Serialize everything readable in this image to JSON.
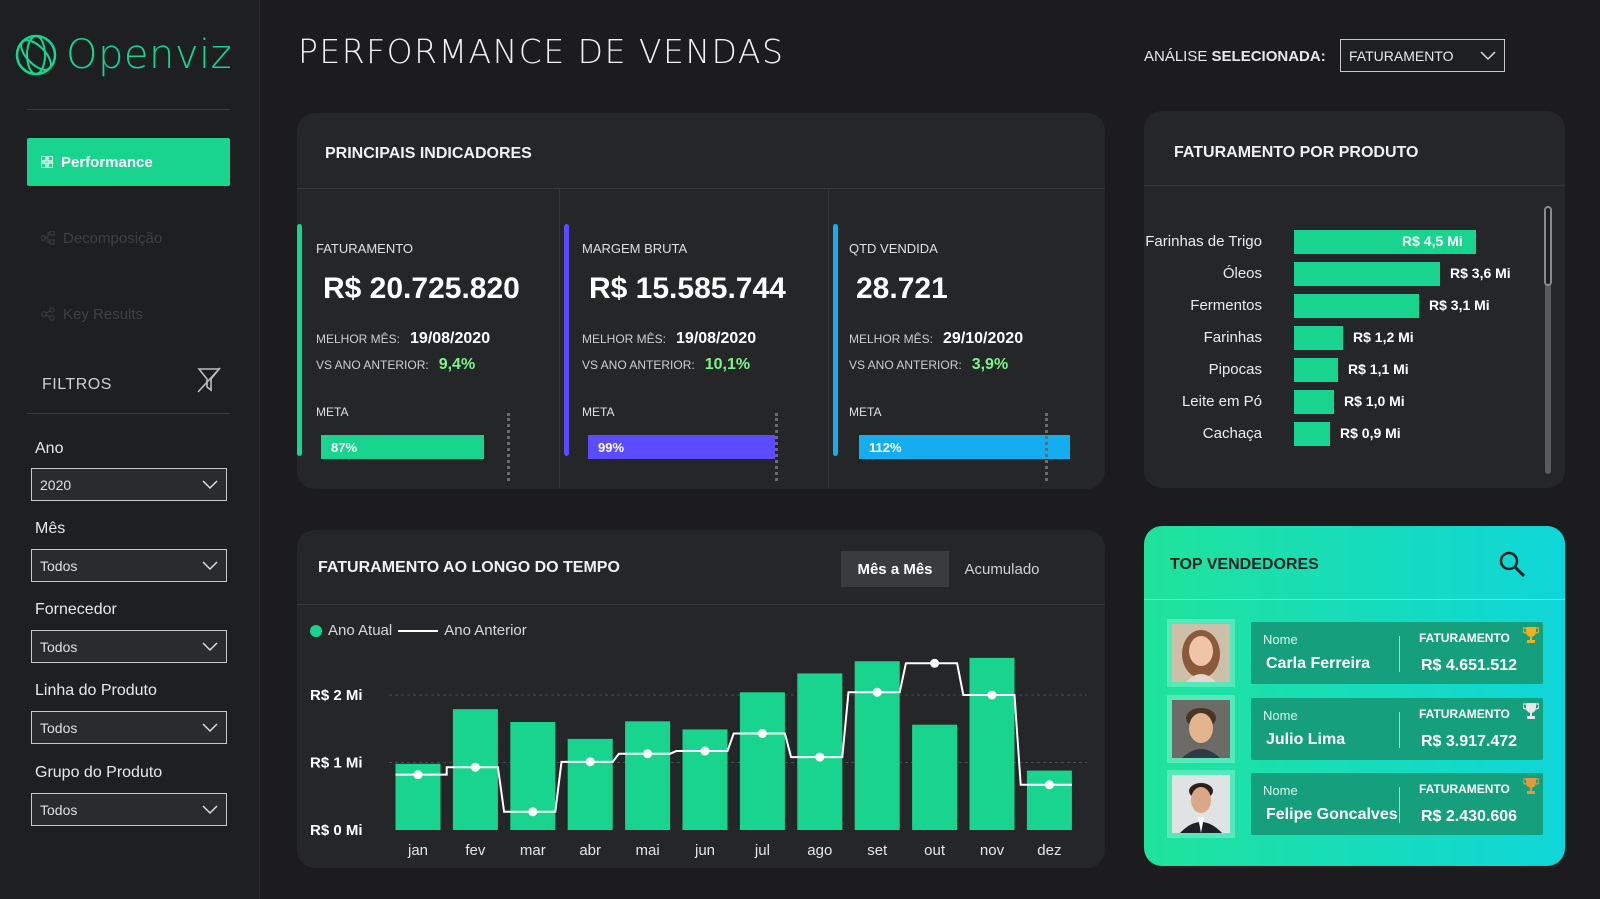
{
  "brand": {
    "name": "Openviz",
    "color": "#19d48f"
  },
  "sidebar": {
    "nav": [
      {
        "label": "Performance",
        "icon": "grid-icon",
        "active": true
      },
      {
        "label": "Decomposição",
        "icon": "tree-icon",
        "active": false
      },
      {
        "label": "Key Results",
        "icon": "nodes-icon",
        "active": false
      }
    ],
    "filters_title": "FILTROS",
    "filters": [
      {
        "label": "Ano",
        "value": "2020"
      },
      {
        "label": "Mês",
        "value": "Todos"
      },
      {
        "label": "Fornecedor",
        "value": "Todos"
      },
      {
        "label": "Linha do Produto",
        "value": "Todos"
      },
      {
        "label": "Grupo do Produto",
        "value": "Todos"
      }
    ]
  },
  "header": {
    "title": "PERFORMANCE DE VENDAS",
    "analysis_label_1": "ANÁLISE",
    "analysis_label_2": "SELECIONADA:",
    "analysis_value": "FATURAMENTO"
  },
  "kpis": {
    "title": "PRINCIPAIS INDICADORES",
    "best_month_label": "MELHOR MÊS:",
    "vs_label": "VS ANO ANTERIOR:",
    "meta_label": "META",
    "items": [
      {
        "label": "FATURAMENTO",
        "value": "R$ 20.725.820",
        "best_month": "19/08/2020",
        "vs_prev": "9,4%",
        "meta_pct": "87%",
        "meta_fraction": 0.87,
        "color": "#19d48f"
      },
      {
        "label": "MARGEM BRUTA",
        "value": "R$ 15.585.744",
        "best_month": "19/08/2020",
        "vs_prev": "10,1%",
        "meta_pct": "99%",
        "meta_fraction": 0.99,
        "color": "#5b4dff"
      },
      {
        "label": "QTD VENDIDA",
        "value": "28.721",
        "best_month": "29/10/2020",
        "vs_prev": "3,9%",
        "meta_pct": "112%",
        "meta_fraction": 1.12,
        "color": "#14aef0"
      }
    ]
  },
  "products": {
    "title": "FATURAMENTO POR PRODUTO",
    "items": [
      {
        "name": "Farinhas de Trigo",
        "value": 4.5,
        "label": "R$ 4,5 Mi"
      },
      {
        "name": "Óleos",
        "value": 3.6,
        "label": "R$ 3,6 Mi"
      },
      {
        "name": "Fermentos",
        "value": 3.1,
        "label": "R$ 3,1 Mi"
      },
      {
        "name": "Farinhas",
        "value": 1.2,
        "label": "R$ 1,2 Mi"
      },
      {
        "name": "Pipocas",
        "value": 1.1,
        "label": "R$ 1,1 Mi"
      },
      {
        "name": "Leite em Pó",
        "value": 1.0,
        "label": "R$ 1,0 Mi"
      },
      {
        "name": "Cachaça",
        "value": 0.9,
        "label": "R$ 0,9 Mi"
      }
    ]
  },
  "time_chart": {
    "title": "FATURAMENTO AO LONGO DO TEMPO",
    "toggle_on": "Mês a Mês",
    "toggle_off": "Acumulado",
    "legend_current": "Ano Atual",
    "legend_previous": "Ano Anterior"
  },
  "chart_data": {
    "type": "bar",
    "title": "FATURAMENTO AO LONGO DO TEMPO",
    "categories": [
      "jan",
      "fev",
      "mar",
      "abr",
      "mai",
      "jun",
      "jul",
      "ago",
      "set",
      "out",
      "nov",
      "dez"
    ],
    "y_ticks": [
      {
        "value": 2,
        "label": "R$ 2 Mi"
      },
      {
        "value": 1,
        "label": "R$ 1 Mi"
      },
      {
        "value": 0,
        "label": "R$ 0 Mi"
      }
    ],
    "ylim": [
      0,
      2.55
    ],
    "series": [
      {
        "name": "Ano Atual",
        "type": "bar",
        "color": "#19d48f",
        "values": [
          0.98,
          1.79,
          1.6,
          1.35,
          1.61,
          1.49,
          2.04,
          2.32,
          2.5,
          1.56,
          2.55,
          0.88
        ]
      },
      {
        "name": "Ano Anterior",
        "type": "step-line",
        "color": "#ffffff",
        "values": [
          0.82,
          0.93,
          0.27,
          1.01,
          1.13,
          1.17,
          1.43,
          1.08,
          2.04,
          2.47,
          2.0,
          0.67
        ]
      }
    ]
  },
  "top_sellers": {
    "title": "TOP VENDEDORES",
    "name_label": "Nome",
    "fat_label": "FATURAMENTO",
    "items": [
      {
        "name": "Carla Ferreira",
        "value": "R$ 4.651.512",
        "trophy": "gold"
      },
      {
        "name": "Julio Lima",
        "value": "R$ 3.917.472",
        "trophy": "silver"
      },
      {
        "name": "Felipe Goncalves",
        "value": "R$ 2.430.606",
        "trophy": "bronze"
      }
    ]
  }
}
